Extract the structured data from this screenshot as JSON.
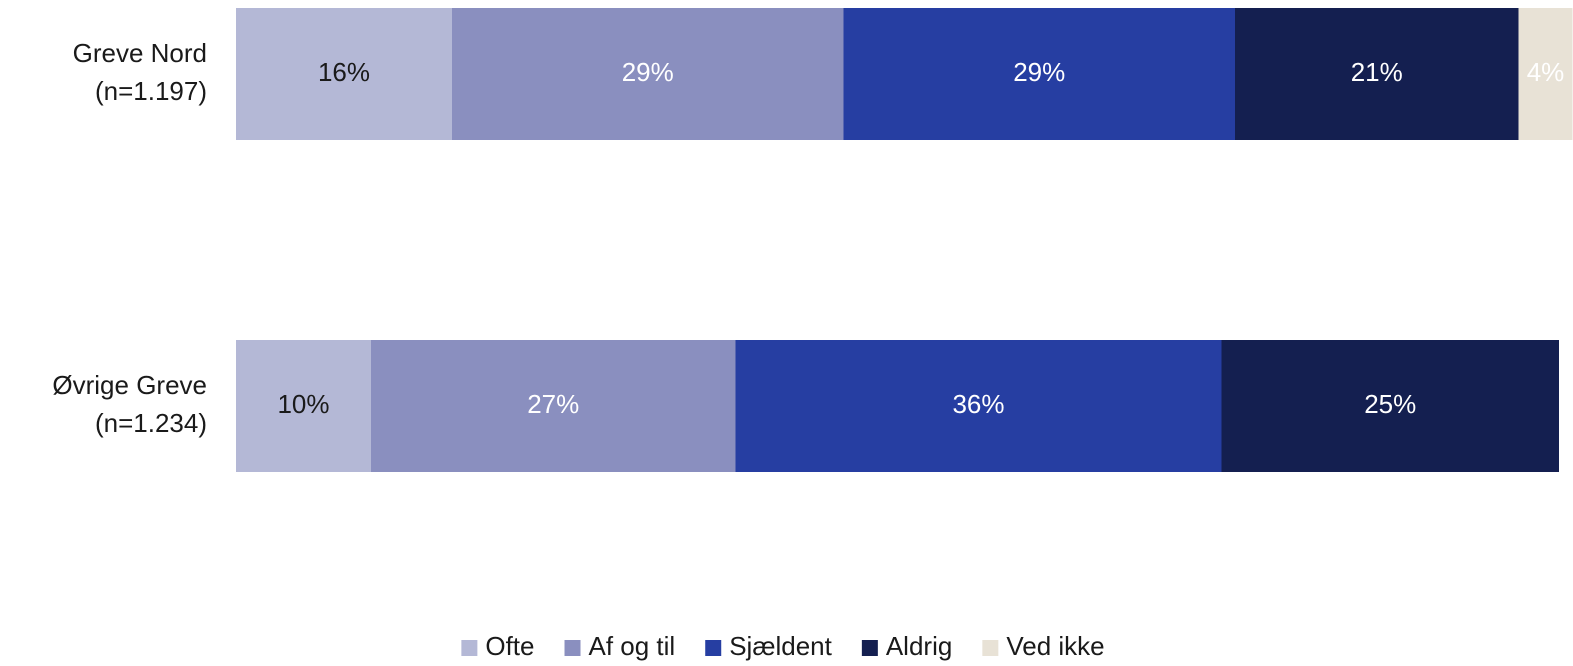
{
  "chart_data": {
    "type": "stacked-barh",
    "categories": [
      [
        "Greve Nord",
        "(n=1.197)"
      ],
      [
        "Øvrige Greve",
        "(n=1.234)"
      ]
    ],
    "xlim": [
      0,
      100
    ],
    "series": [
      {
        "name": "Ofte",
        "color": "#b4b8d6",
        "label_color": "#1a1a1a",
        "values": [
          16,
          10
        ],
        "value_labels": [
          "16%",
          "10%"
        ]
      },
      {
        "name": "Af og til",
        "color": "#8a8fbf",
        "label_color": "#ffffff",
        "values": [
          29,
          27
        ],
        "value_labels": [
          "29%",
          "27%"
        ]
      },
      {
        "name": "Sjældent",
        "color": "#263ea2",
        "label_color": "#ffffff",
        "values": [
          29,
          36
        ],
        "value_labels": [
          "29%",
          "36%"
        ]
      },
      {
        "name": "Aldrig",
        "color": "#141f50",
        "label_color": "#ffffff",
        "values": [
          21,
          25
        ],
        "value_labels": [
          "21%",
          "25%"
        ]
      },
      {
        "name": "Ved ikke",
        "color": "#e8e2d6",
        "label_color": "#ffffff",
        "values": [
          4,
          null
        ],
        "value_labels": [
          "4%",
          null
        ]
      }
    ],
    "legend": "bottom"
  }
}
